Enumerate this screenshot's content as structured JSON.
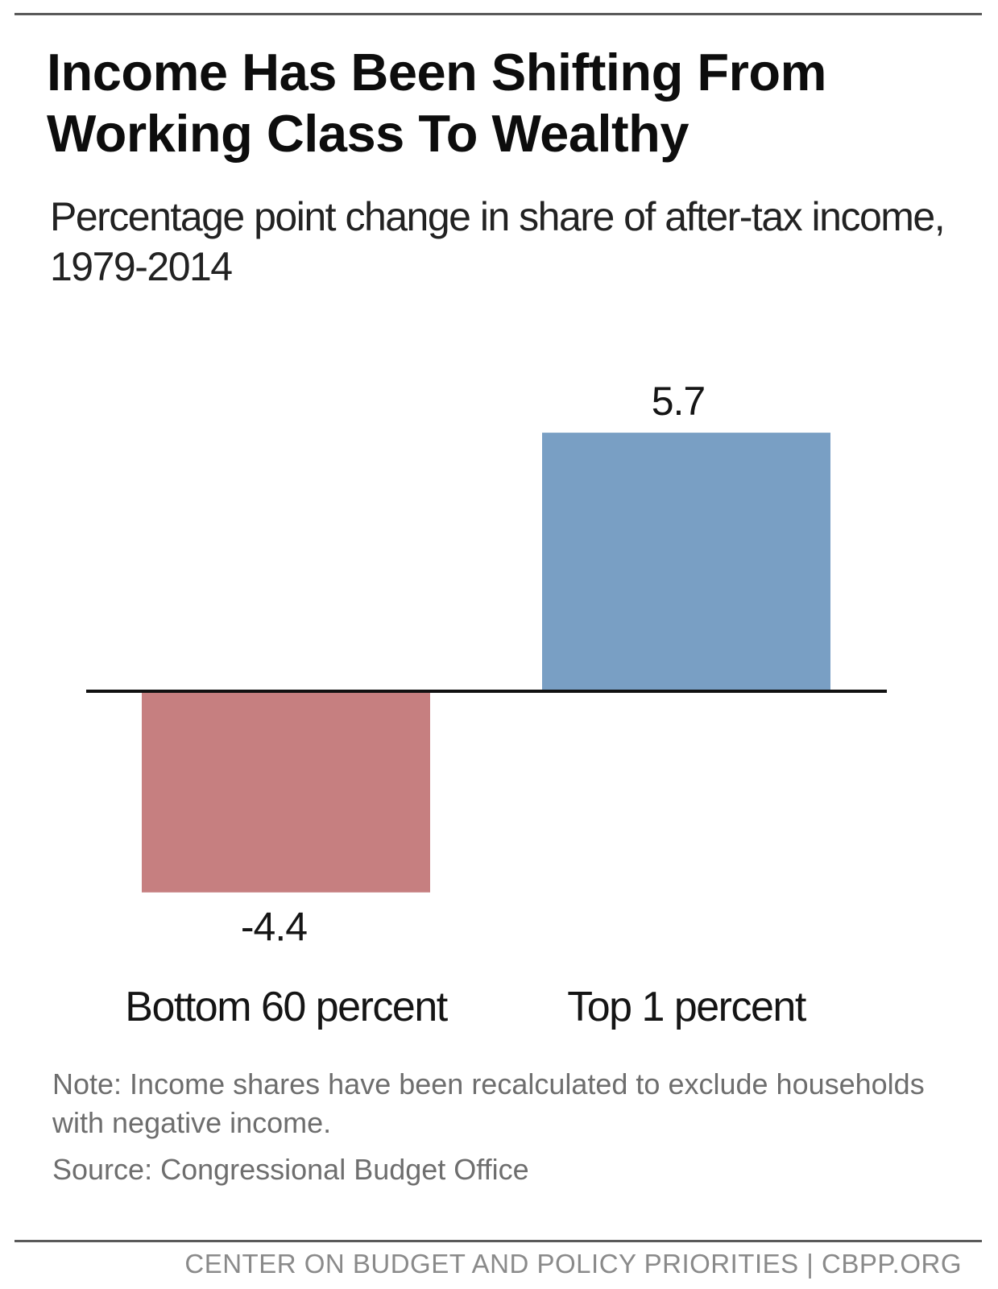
{
  "title": "Income Has Been Shifting From Working Class To Wealthy",
  "subtitle": "Percentage point change in share of after-tax income, 1979-2014",
  "note": "Note: Income shares have been recalculated to exclude households with negative income.",
  "source": "Source: Congressional Budget Office",
  "footer": "CENTER ON BUDGET AND POLICY PRIORITIES | CBPP.ORG",
  "colors": {
    "negative_bar": "#c67f80",
    "positive_bar": "#799fc4",
    "baseline": "#111111",
    "rule": "#5a5a5a"
  },
  "chart_data": {
    "type": "bar",
    "categories": [
      "Bottom 60 percent",
      "Top 1 percent"
    ],
    "values": [
      -4.4,
      5.7
    ],
    "data_labels": [
      "-4.4",
      "5.7"
    ],
    "bar_colors": [
      "#c67f80",
      "#799fc4"
    ],
    "title": "Income Has Been Shifting From Working Class To Wealthy",
    "subtitle": "Percentage point change in share of after-tax income, 1979-2014",
    "xlabel": "",
    "ylabel": "",
    "ylim": [
      -4.4,
      5.7
    ],
    "grid": false,
    "legend": "none"
  }
}
